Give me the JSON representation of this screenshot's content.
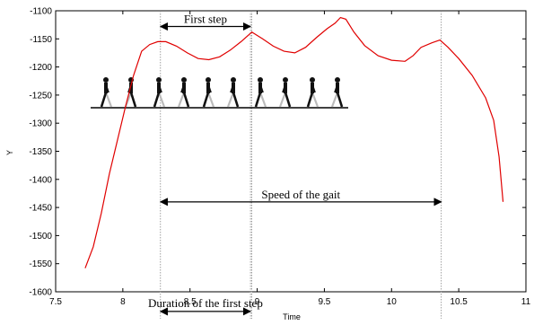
{
  "chart_data": {
    "type": "line",
    "title": "",
    "xlabel": "Time",
    "ylabel": "Y",
    "xlim": [
      7.5,
      11
    ],
    "ylim": [
      -1600,
      -1100
    ],
    "xticks": [
      "7.5",
      "8",
      "8.5",
      "9",
      "9.5",
      "10",
      "10.5",
      "11"
    ],
    "yticks": [
      "-1100",
      "-1150",
      "-1200",
      "-1250",
      "-1300",
      "-1350",
      "-1400",
      "-1450",
      "-1500",
      "-1550",
      "-1600"
    ],
    "grid": false,
    "series": [
      {
        "name": "",
        "color": "#e00000",
        "x": [
          7.72,
          7.78,
          7.84,
          7.9,
          7.96,
          8.02,
          8.08,
          8.14,
          8.2,
          8.26,
          8.32,
          8.4,
          8.48,
          8.56,
          8.64,
          8.72,
          8.8,
          8.88,
          8.96,
          9.04,
          9.12,
          9.2,
          9.28,
          9.36,
          9.44,
          9.52,
          9.58,
          9.62,
          9.66,
          9.72,
          9.8,
          9.9,
          10.0,
          10.1,
          10.16,
          10.22,
          10.3,
          10.36,
          10.42,
          10.5,
          10.6,
          10.7,
          10.76,
          10.8,
          10.83
        ],
        "y": [
          -1558,
          -1520,
          -1460,
          -1390,
          -1330,
          -1270,
          -1215,
          -1172,
          -1160,
          -1155,
          -1155,
          -1163,
          -1175,
          -1185,
          -1187,
          -1182,
          -1170,
          -1155,
          -1138,
          -1150,
          -1163,
          -1172,
          -1175,
          -1165,
          -1148,
          -1132,
          -1122,
          -1112,
          -1115,
          -1138,
          -1162,
          -1180,
          -1188,
          -1190,
          -1180,
          -1165,
          -1157,
          -1152,
          -1165,
          -1185,
          -1215,
          -1255,
          -1295,
          -1360,
          -1440
        ]
      }
    ],
    "vlines": [
      8.28,
      8.95,
      8.96,
      10.37
    ],
    "annotations": [
      {
        "text": "First step",
        "from": 8.28,
        "to": 8.95,
        "y": -1128
      },
      {
        "text": "Speed of the gait",
        "from": 8.28,
        "to": 10.37,
        "y": -1440
      },
      {
        "text": "Duration of the first step",
        "from": 8.28,
        "to": 8.95,
        "y": -1635
      }
    ],
    "colors": {
      "line": "#e00000",
      "axis": "#000000",
      "vline": "#888888"
    }
  }
}
